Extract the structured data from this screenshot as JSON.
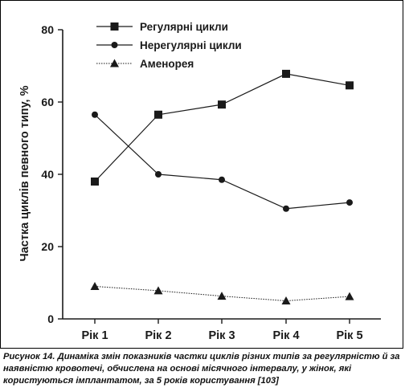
{
  "chart_data": {
    "type": "line",
    "title": "",
    "xlabel": "",
    "ylabel": "Частка циклів певного типу, %",
    "categories": [
      "Рік 1",
      "Рік 2",
      "Рік 3",
      "Рік 4",
      "Рік 5"
    ],
    "ylim": [
      0,
      80
    ],
    "yticks": [
      0,
      20,
      40,
      60,
      80
    ],
    "grid": false,
    "legend_position": "top-center",
    "series": [
      {
        "name": "Регулярні цикли",
        "values": [
          38,
          56.5,
          59.3,
          67.8,
          64.6
        ],
        "marker": "square",
        "line": "solid",
        "color": "#1a1a1a"
      },
      {
        "name": "Нерегулярні цикли",
        "values": [
          56.5,
          40,
          38.5,
          30.5,
          32.2
        ],
        "marker": "circle",
        "line": "solid",
        "color": "#1a1a1a"
      },
      {
        "name": "Аменорея",
        "values": [
          9,
          7.8,
          6.3,
          5,
          6.2
        ],
        "marker": "triangle",
        "line": "dotted",
        "color": "#1a1a1a"
      }
    ]
  },
  "caption": {
    "label": "Рисунок 14.",
    "text": " Динаміка змін показників частки циклів різних типів за регулярністю й за наявністю кровотечі, обчислена на основі місячного інтервалу, у жінок, які користуються імплантатом, за 5 років користування [103]"
  }
}
